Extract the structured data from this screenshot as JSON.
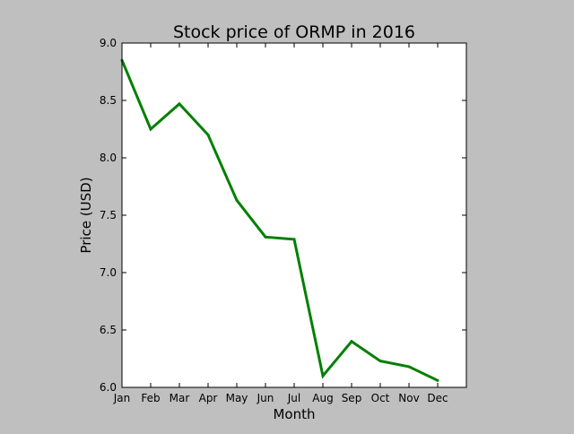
{
  "chart_data": {
    "type": "line",
    "title": "Stock price of ORMP in 2016",
    "xlabel": "Month",
    "ylabel": "Price (USD)",
    "categories": [
      "Jan",
      "Feb",
      "Mar",
      "Apr",
      "May",
      "Jun",
      "Jul",
      "Aug",
      "Sep",
      "Oct",
      "Nov",
      "Dec"
    ],
    "series": [
      {
        "values": [
          8.85,
          8.25,
          8.47,
          8.2,
          7.63,
          7.31,
          7.29,
          6.1,
          6.4,
          6.23,
          6.18,
          6.06
        ],
        "color": "#008000"
      }
    ],
    "yticks": [
      "6.0",
      "6.5",
      "7.0",
      "7.5",
      "8.0",
      "8.5",
      "9.0"
    ],
    "ylim": [
      6.0,
      9.0
    ],
    "grid": false,
    "legend": "none"
  },
  "colors": {
    "figure_background": "#bfbfbf",
    "plot_background": "#ffffff",
    "line": "#008000"
  }
}
